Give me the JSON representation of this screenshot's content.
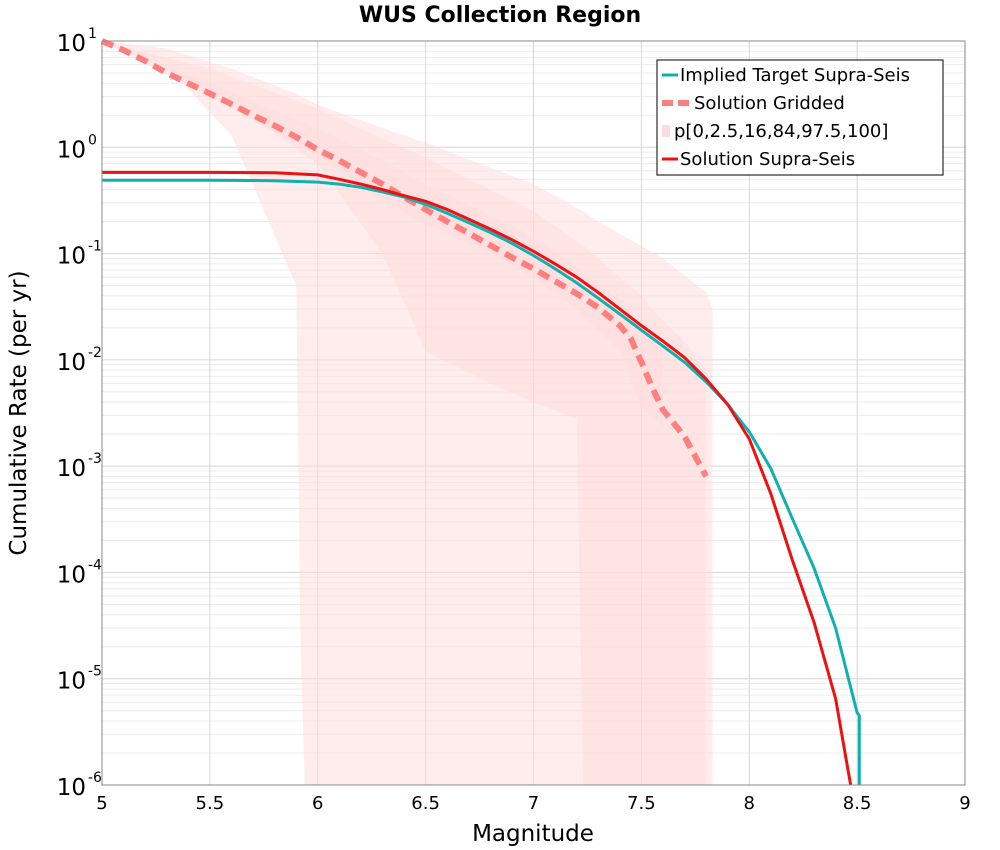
{
  "chart_data": {
    "type": "line",
    "title": "WUS Collection Region",
    "xlabel": "Magnitude",
    "ylabel": "Cumulative Rate (per yr)",
    "xlim": [
      5,
      9
    ],
    "ylim": [
      1e-06,
      10
    ],
    "yscale": "log",
    "grid": true,
    "legend_position": "top-right",
    "x_ticks": [
      "5",
      "5.5",
      "6",
      "6.5",
      "7",
      "7.5",
      "8",
      "8.5",
      "9"
    ],
    "y_ticks": [
      {
        "base": "10",
        "exp": "1"
      },
      {
        "base": "10",
        "exp": "0"
      },
      {
        "base": "10",
        "exp": "-1"
      },
      {
        "base": "10",
        "exp": "-2"
      },
      {
        "base": "10",
        "exp": "-3"
      },
      {
        "base": "10",
        "exp": "-4"
      },
      {
        "base": "10",
        "exp": "-5"
      },
      {
        "base": "10",
        "exp": "-6"
      }
    ],
    "series": [
      {
        "name": "Implied Target Supra-Seis",
        "color": "#10B0B0",
        "style": "solid",
        "x": [
          5.0,
          5.5,
          5.8,
          6.0,
          6.1,
          6.2,
          6.3,
          6.4,
          6.5,
          6.6,
          6.7,
          6.8,
          6.9,
          7.0,
          7.1,
          7.2,
          7.3,
          7.4,
          7.5,
          7.6,
          7.7,
          7.8,
          7.9,
          8.0,
          8.1,
          8.2,
          8.3,
          8.4,
          8.5,
          8.51,
          8.51
        ],
        "y": [
          0.49,
          0.49,
          0.485,
          0.47,
          0.45,
          0.42,
          0.38,
          0.34,
          0.29,
          0.24,
          0.195,
          0.158,
          0.125,
          0.096,
          0.072,
          0.053,
          0.038,
          0.027,
          0.019,
          0.0135,
          0.0095,
          0.0062,
          0.0038,
          0.0021,
          0.00095,
          0.00032,
          0.00011,
          3e-05,
          4.8e-06,
          4.5e-06,
          1e-06
        ]
      },
      {
        "name": "Solution Gridded",
        "color": "#FF7F7F",
        "style": "dashed",
        "x": [
          5.0,
          5.1,
          5.2,
          5.3,
          5.4,
          5.5,
          5.6,
          5.7,
          5.8,
          5.9,
          6.0,
          6.1,
          6.2,
          6.3,
          6.4,
          6.5,
          6.6,
          6.7,
          6.8,
          6.9,
          7.0,
          7.1,
          7.2,
          7.3,
          7.4,
          7.45,
          7.5,
          7.55,
          7.6,
          7.7,
          7.8
        ],
        "y": [
          10,
          8.2,
          6.5,
          5.0,
          4.0,
          3.2,
          2.55,
          2.0,
          1.6,
          1.25,
          0.95,
          0.75,
          0.58,
          0.45,
          0.34,
          0.26,
          0.2,
          0.155,
          0.12,
          0.092,
          0.072,
          0.055,
          0.042,
          0.031,
          0.021,
          0.016,
          0.0095,
          0.0055,
          0.0034,
          0.0019,
          0.0008
        ]
      },
      {
        "name": "p[0,2.5,16,84,97.5,100]",
        "color": "#FFDCDC",
        "style": "band"
      },
      {
        "name": "Solution Supra-Seis",
        "color": "#EE1111",
        "style": "solid",
        "x": [
          5.0,
          5.5,
          5.8,
          6.0,
          6.1,
          6.2,
          6.3,
          6.4,
          6.5,
          6.6,
          6.7,
          6.8,
          6.9,
          7.0,
          7.1,
          7.2,
          7.3,
          7.4,
          7.5,
          7.6,
          7.7,
          7.8,
          7.9,
          8.0,
          8.1,
          8.2,
          8.3,
          8.4,
          8.46,
          8.47
        ],
        "y": [
          0.58,
          0.58,
          0.575,
          0.55,
          0.5,
          0.45,
          0.4,
          0.35,
          0.31,
          0.26,
          0.21,
          0.17,
          0.135,
          0.105,
          0.08,
          0.06,
          0.043,
          0.03,
          0.021,
          0.015,
          0.0105,
          0.0066,
          0.0038,
          0.0018,
          0.00055,
          0.00013,
          3.4e-05,
          6.5e-06,
          1.3e-06,
          1e-06
        ]
      }
    ],
    "bands": [
      {
        "percentile": "0-100",
        "x": [
          5.0,
          5.3,
          5.6,
          5.9,
          5.92,
          5.94,
          6.0,
          6.5,
          7.0,
          7.23,
          7.3,
          7.6,
          7.8,
          7.83,
          7.83
        ],
        "y_low": [
          10,
          5.8,
          1.3,
          0.05,
          2e-05,
          1e-06,
          1e-06,
          1e-06,
          1e-06,
          1e-06,
          1e-06,
          1e-06,
          1e-06,
          1e-06,
          1e-06
        ],
        "y_high": [
          10,
          8.5,
          5.5,
          3.2,
          3.0,
          2.9,
          2.5,
          1.1,
          0.45,
          0.25,
          0.2,
          0.09,
          0.043,
          0.03,
          0.02
        ]
      },
      {
        "percentile": "2.5-97.5",
        "x": [
          5.0,
          5.5,
          6.0,
          6.3,
          6.5,
          6.8,
          7.0,
          7.2,
          7.23,
          7.3,
          7.5,
          7.55,
          7.7,
          7.8
        ],
        "y_low": [
          10,
          3.5,
          0.7,
          0.1,
          0.012,
          0.006,
          0.004,
          0.0028,
          1e-06,
          1e-06,
          1e-06,
          1e-06,
          1e-06,
          1e-06
        ],
        "y_high": [
          10,
          5.5,
          2.3,
          1.2,
          0.8,
          0.4,
          0.25,
          0.13,
          0.12,
          0.09,
          0.04,
          0.03,
          0.015,
          0.008
        ]
      },
      {
        "percentile": "16-84",
        "x": [
          5.0,
          5.5,
          6.0,
          6.3,
          6.5,
          6.8,
          7.0,
          7.2,
          7.4,
          7.5,
          7.6
        ],
        "y_low": [
          10,
          3.0,
          0.85,
          0.32,
          0.19,
          0.1,
          0.06,
          0.03,
          0.012,
          0.0035,
          0.0025
        ],
        "y_high": [
          10,
          4.0,
          1.5,
          0.75,
          0.45,
          0.23,
          0.14,
          0.075,
          0.035,
          0.02,
          0.012
        ]
      }
    ]
  }
}
